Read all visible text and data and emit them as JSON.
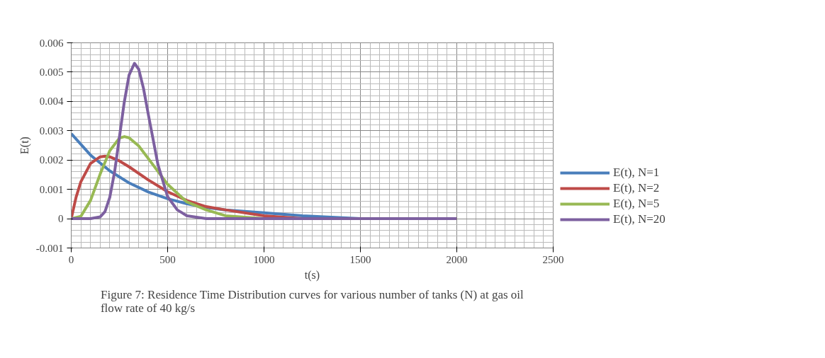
{
  "chart_data": {
    "type": "line",
    "xlabel": "t(s)",
    "ylabel": "E(t)",
    "annotations": [
      "Figure 7: Residence Time Distribution curves for various number of tanks (N) at gas oil\nflow rate of 40 kg/s"
    ],
    "xlim": [
      0,
      2500
    ],
    "xticks": [
      0,
      500,
      1000,
      1500,
      2000,
      2500
    ],
    "ylim": [
      -0.001,
      0.006
    ],
    "yticks": [
      -0.001,
      0,
      0.001,
      0.002,
      0.003,
      0.004,
      0.005,
      0.006
    ],
    "grid": true,
    "legend": "right",
    "line_style": "solid",
    "marker": "none",
    "series": [
      {
        "name": "E(t), N=1",
        "color": "#4a7ebb",
        "x": [
          0,
          100,
          200,
          300,
          400,
          500,
          600,
          700,
          800,
          1000,
          1200,
          1500,
          2000
        ],
        "values": [
          0.0029,
          0.00217,
          0.00163,
          0.00122,
          0.00091,
          0.00068,
          0.00051,
          0.00038,
          0.0003,
          0.0002,
          0.0001,
          0,
          0
        ]
      },
      {
        "name": "E(t), N=2",
        "color": "#be4b48",
        "x": [
          0,
          25,
          50,
          100,
          150,
          175,
          200,
          250,
          300,
          400,
          500,
          600,
          700,
          800,
          1000,
          1200,
          1500,
          2000
        ],
        "values": [
          0,
          0.00073,
          0.00126,
          0.00188,
          0.00211,
          0.00213,
          0.00211,
          0.00197,
          0.00177,
          0.00132,
          0.00092,
          0.00062,
          0.00041,
          0.0003,
          0.0001,
          0,
          0,
          0
        ]
      },
      {
        "name": "E(t), N=5",
        "color": "#98b954",
        "x": [
          0,
          50,
          100,
          150,
          200,
          250,
          276,
          300,
          350,
          400,
          500,
          600,
          700,
          800,
          1000,
          1200,
          2000
        ],
        "values": [
          0,
          8e-05,
          0.00062,
          0.00152,
          0.00232,
          0.00275,
          0.0028,
          0.00276,
          0.00248,
          0.00205,
          0.00117,
          0.00057,
          0.0003,
          0.0001,
          0,
          0,
          0
        ]
      },
      {
        "name": "E(t), N=20",
        "color": "#7d60a0",
        "x": [
          0,
          100,
          150,
          175,
          200,
          225,
          250,
          275,
          300,
          328,
          350,
          375,
          400,
          450,
          500,
          550,
          600,
          700,
          2000
        ],
        "values": [
          0,
          0,
          6e-05,
          0.00024,
          0.00073,
          0.0016,
          0.00278,
          0.00397,
          0.0049,
          0.0053,
          0.0051,
          0.00444,
          0.00355,
          0.00184,
          0.00075,
          0.0003,
          0.0001,
          0,
          0
        ]
      }
    ]
  }
}
